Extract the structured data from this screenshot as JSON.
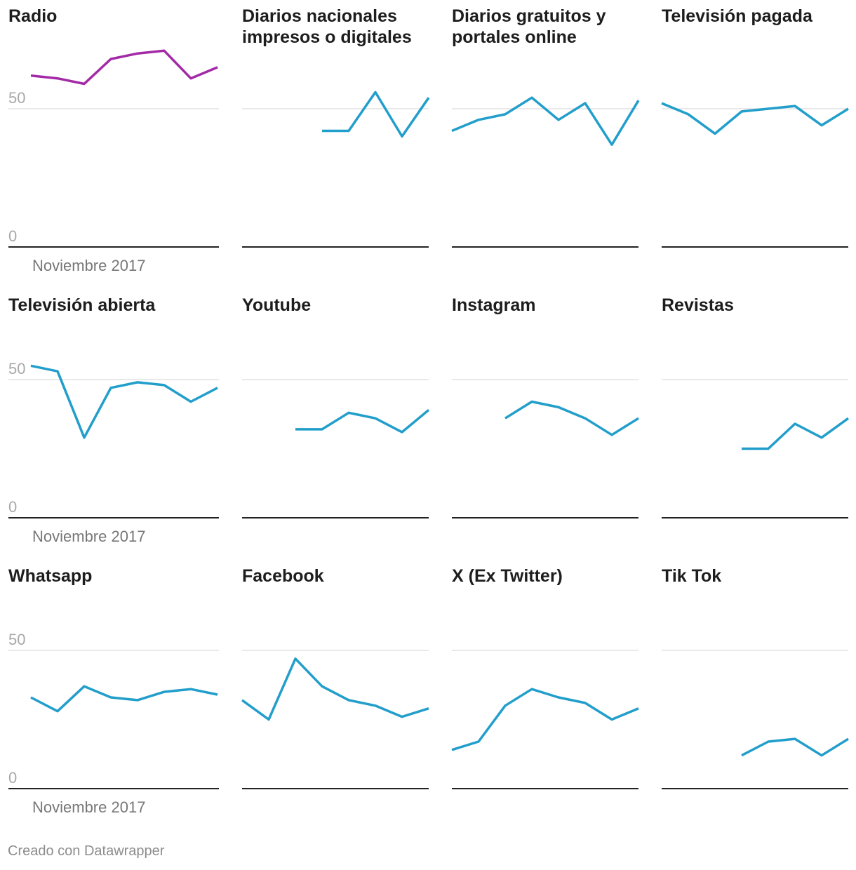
{
  "chart_data": [
    {
      "type": "line",
      "title": "Radio",
      "x": [
        1,
        2,
        3,
        4,
        5,
        6,
        7,
        8
      ],
      "values": [
        62,
        61,
        59,
        68,
        70,
        71,
        61,
        65
      ],
      "ylim": [
        0,
        100
      ],
      "yticks": [
        0,
        50
      ],
      "xlabel": "Noviembre 2017",
      "color": "#a32aa6"
    },
    {
      "type": "line",
      "title": "Diarios nacionales impresos o digitales",
      "x": [
        1,
        2,
        3,
        4,
        5,
        6,
        7,
        8
      ],
      "values": [
        null,
        null,
        null,
        42,
        42,
        56,
        40,
        54
      ],
      "ylim": [
        0,
        100
      ],
      "yticks": [
        0,
        50
      ],
      "xlabel": "",
      "color": "#229ecb"
    },
    {
      "type": "line",
      "title": "Diarios gratuitos y portales online",
      "x": [
        1,
        2,
        3,
        4,
        5,
        6,
        7,
        8
      ],
      "values": [
        42,
        46,
        48,
        54,
        46,
        52,
        37,
        53
      ],
      "ylim": [
        0,
        100
      ],
      "yticks": [
        0,
        50
      ],
      "xlabel": "",
      "color": "#229ecb"
    },
    {
      "type": "line",
      "title": "Televisión pagada",
      "x": [
        1,
        2,
        3,
        4,
        5,
        6,
        7,
        8
      ],
      "values": [
        52,
        48,
        41,
        49,
        50,
        51,
        44,
        50
      ],
      "ylim": [
        0,
        100
      ],
      "yticks": [
        0,
        50
      ],
      "xlabel": "",
      "color": "#229ecb"
    },
    {
      "type": "line",
      "title": "Televisión abierta",
      "x": [
        1,
        2,
        3,
        4,
        5,
        6,
        7,
        8
      ],
      "values": [
        55,
        53,
        29,
        47,
        49,
        48,
        42,
        47
      ],
      "ylim": [
        0,
        100
      ],
      "yticks": [
        0,
        50
      ],
      "xlabel": "Noviembre 2017",
      "color": "#229ecb"
    },
    {
      "type": "line",
      "title": "Youtube",
      "x": [
        1,
        2,
        3,
        4,
        5,
        6,
        7,
        8
      ],
      "values": [
        null,
        null,
        32,
        32,
        38,
        36,
        31,
        39
      ],
      "ylim": [
        0,
        100
      ],
      "yticks": [
        0,
        50
      ],
      "xlabel": "",
      "color": "#229ecb"
    },
    {
      "type": "line",
      "title": "Instagram",
      "x": [
        1,
        2,
        3,
        4,
        5,
        6,
        7,
        8
      ],
      "values": [
        null,
        null,
        36,
        42,
        40,
        36,
        30,
        36
      ],
      "ylim": [
        0,
        100
      ],
      "yticks": [
        0,
        50
      ],
      "xlabel": "",
      "color": "#229ecb"
    },
    {
      "type": "line",
      "title": "Revistas",
      "x": [
        1,
        2,
        3,
        4,
        5,
        6,
        7,
        8
      ],
      "values": [
        null,
        null,
        null,
        25,
        25,
        34,
        29,
        36
      ],
      "ylim": [
        0,
        100
      ],
      "yticks": [
        0,
        50
      ],
      "xlabel": "",
      "color": "#229ecb"
    },
    {
      "type": "line",
      "title": "Whatsapp",
      "x": [
        1,
        2,
        3,
        4,
        5,
        6,
        7,
        8
      ],
      "values": [
        33,
        28,
        37,
        33,
        32,
        35,
        36,
        34
      ],
      "ylim": [
        0,
        100
      ],
      "yticks": [
        0,
        50
      ],
      "xlabel": "Noviembre 2017",
      "color": "#229ecb"
    },
    {
      "type": "line",
      "title": "Facebook",
      "x": [
        1,
        2,
        3,
        4,
        5,
        6,
        7,
        8
      ],
      "values": [
        32,
        25,
        47,
        37,
        32,
        30,
        26,
        29
      ],
      "ylim": [
        0,
        100
      ],
      "yticks": [
        0,
        50
      ],
      "xlabel": "",
      "color": "#229ecb"
    },
    {
      "type": "line",
      "title": "X (Ex Twitter)",
      "x": [
        1,
        2,
        3,
        4,
        5,
        6,
        7,
        8
      ],
      "values": [
        14,
        17,
        30,
        36,
        33,
        31,
        25,
        29
      ],
      "ylim": [
        0,
        100
      ],
      "yticks": [
        0,
        50
      ],
      "xlabel": "",
      "color": "#229ecb"
    },
    {
      "type": "line",
      "title": "Tik Tok",
      "x": [
        1,
        2,
        3,
        4,
        5,
        6,
        7,
        8
      ],
      "values": [
        null,
        null,
        null,
        12,
        17,
        18,
        12,
        18
      ],
      "ylim": [
        0,
        100
      ],
      "yticks": [
        0,
        50
      ],
      "xlabel": "",
      "color": "#229ecb"
    }
  ],
  "footer": "Creado con Datawrapper"
}
